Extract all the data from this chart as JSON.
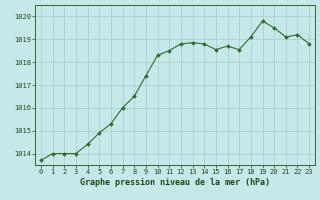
{
  "x": [
    0,
    1,
    2,
    3,
    4,
    5,
    6,
    7,
    8,
    9,
    10,
    11,
    12,
    13,
    14,
    15,
    16,
    17,
    18,
    19,
    20,
    21,
    22,
    23
  ],
  "y": [
    1013.7,
    1014.0,
    1014.0,
    1014.0,
    1014.4,
    1014.9,
    1015.3,
    1016.0,
    1016.5,
    1017.4,
    1018.3,
    1018.5,
    1018.8,
    1018.85,
    1018.8,
    1018.55,
    1018.7,
    1018.55,
    1019.1,
    1019.8,
    1019.5,
    1019.1,
    1019.2,
    1018.8
  ],
  "ylim": [
    1013.5,
    1020.5
  ],
  "yticks": [
    1014,
    1015,
    1016,
    1017,
    1018,
    1019,
    1020
  ],
  "xticks": [
    0,
    1,
    2,
    3,
    4,
    5,
    6,
    7,
    8,
    9,
    10,
    11,
    12,
    13,
    14,
    15,
    16,
    17,
    18,
    19,
    20,
    21,
    22,
    23
  ],
  "xlabel": "Graphe pression niveau de la mer (hPa)",
  "line_color": "#2d6e2d",
  "marker": "D",
  "marker_size": 2.0,
  "bg_color": "#c5e8e8",
  "grid_color": "#aacaca",
  "xlabel_color": "#1a4a1a",
  "tick_color": "#1a4a1a",
  "spine_color": "#336633"
}
